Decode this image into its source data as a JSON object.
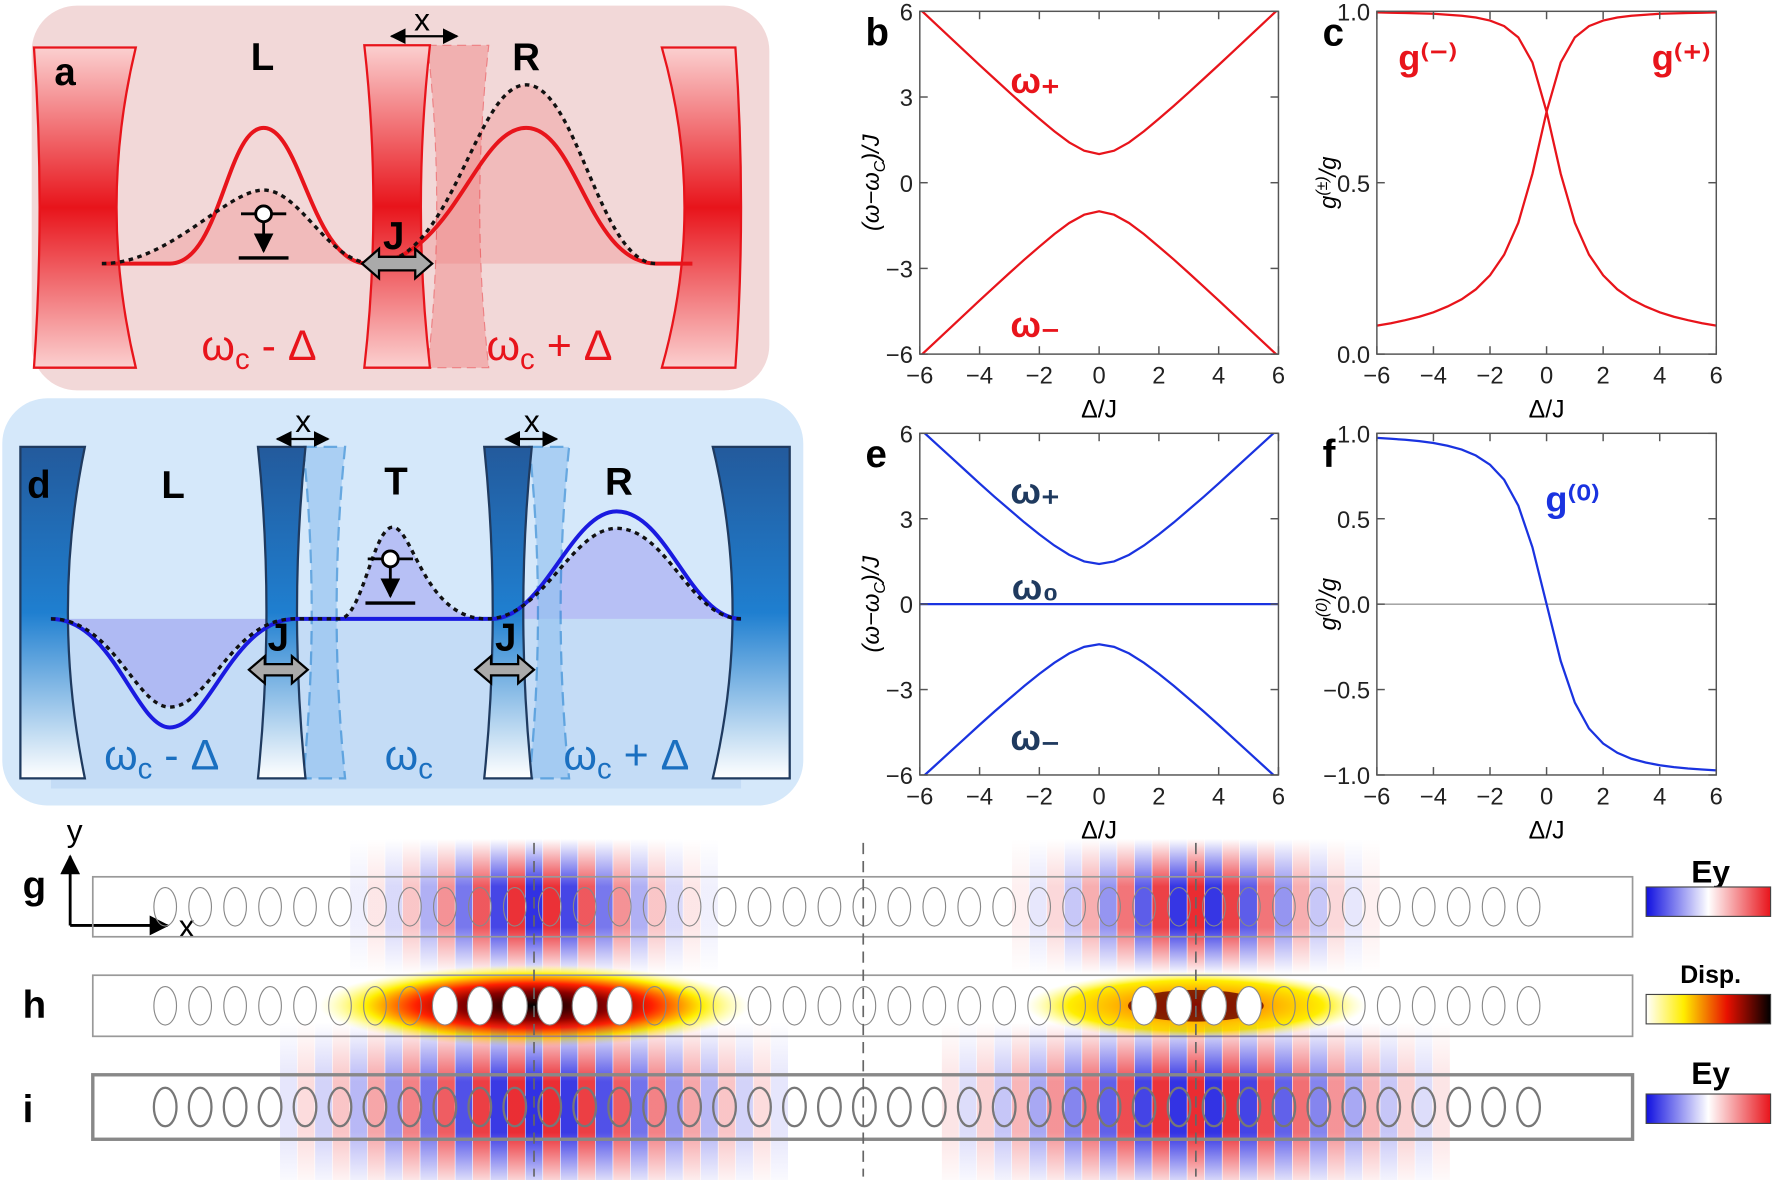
{
  "chart_data": [
    {
      "type": "line",
      "label": "b",
      "label_color": "#e8141b",
      "x": [
        -6,
        -5.5,
        -5,
        -4.5,
        -4,
        -3.5,
        -3,
        -2.5,
        -2,
        -1.5,
        -1,
        -0.5,
        0,
        0.5,
        1,
        1.5,
        2,
        2.5,
        3,
        3.5,
        4,
        4.5,
        5,
        5.5,
        6
      ],
      "series": [
        {
          "name": "ω₊",
          "color": "#e8141b",
          "values": [
            6.08,
            5.59,
            5.1,
            4.61,
            4.12,
            3.64,
            3.16,
            2.69,
            2.24,
            1.8,
            1.41,
            1.12,
            1,
            1.12,
            1.41,
            1.8,
            2.24,
            2.69,
            3.16,
            3.64,
            4.12,
            4.61,
            5.1,
            5.59,
            6.08
          ]
        },
        {
          "name": "ω₋",
          "color": "#e8141b",
          "values": [
            -6.08,
            -5.59,
            -5.1,
            -4.61,
            -4.12,
            -3.64,
            -3.16,
            -2.69,
            -2.24,
            -1.8,
            -1.41,
            -1.12,
            -1,
            -1.12,
            -1.41,
            -1.8,
            -2.24,
            -2.69,
            -3.16,
            -3.64,
            -4.12,
            -4.61,
            -5.1,
            -5.59,
            -6.08
          ]
        }
      ],
      "xlim": [
        -6,
        6
      ],
      "ylim": [
        -6,
        6
      ],
      "xticks": [
        {
          "value": -6,
          "label": "−6"
        },
        {
          "value": -4,
          "label": "−4"
        },
        {
          "value": -2,
          "label": "−2"
        },
        0,
        2,
        4,
        6
      ],
      "yticks": [
        {
          "value": -6,
          "label": "−6"
        },
        {
          "value": -3,
          "label": "−3"
        },
        0,
        3,
        6
      ],
      "xlabel": "Δ/J",
      "ylabel": [
        "(ω−ω",
        "C",
        ")/J"
      ],
      "zero_line": false
    },
    {
      "type": "line",
      "label": "c",
      "label_color": "#e8141b",
      "x": [
        -6,
        -5.5,
        -5,
        -4.5,
        -4,
        -3.5,
        -3,
        -2.5,
        -2,
        -1.5,
        -1,
        -0.5,
        0,
        0.5,
        1,
        1.5,
        2,
        2.5,
        3,
        3.5,
        4,
        4.5,
        5,
        5.5,
        6
      ],
      "series": [
        {
          "name": "g⁽⁻⁾",
          "color": "#e8141b",
          "values": [
            0.997,
            0.996,
            0.995,
            0.994,
            0.993,
            0.99,
            0.987,
            0.982,
            0.973,
            0.957,
            0.924,
            0.851,
            0.707,
            0.526,
            0.383,
            0.29,
            0.23,
            0.189,
            0.16,
            0.139,
            0.122,
            0.109,
            0.099,
            0.09,
            0.083
          ]
        },
        {
          "name": "g⁽⁺⁾",
          "color": "#e8141b",
          "values": [
            0.083,
            0.09,
            0.099,
            0.109,
            0.122,
            0.139,
            0.16,
            0.189,
            0.23,
            0.29,
            0.383,
            0.526,
            0.707,
            0.851,
            0.924,
            0.957,
            0.973,
            0.982,
            0.987,
            0.99,
            0.993,
            0.994,
            0.995,
            0.996,
            0.997
          ]
        }
      ],
      "xlim": [
        -6,
        6
      ],
      "ylim": [
        0,
        1
      ],
      "xticks": [
        {
          "value": -6,
          "label": "−6"
        },
        {
          "value": -4,
          "label": "−4"
        },
        {
          "value": -2,
          "label": "−2"
        },
        0,
        2,
        4,
        6
      ],
      "yticks": [
        {
          "value": 0,
          "label": "0.0"
        },
        0.5,
        {
          "value": 1,
          "label": "1.0"
        }
      ],
      "xlabel": "Δ/J",
      "ylabel": [
        "g",
        "(±)",
        "/g"
      ],
      "zero_line": false
    },
    {
      "type": "line",
      "label": "e",
      "label_color": "#1f3a5f",
      "x": [
        -6,
        -5.5,
        -5,
        -4.5,
        -4,
        -3.5,
        -3,
        -2.5,
        -2,
        -1.5,
        -1,
        -0.5,
        0,
        0.5,
        1,
        1.5,
        2,
        2.5,
        3,
        3.5,
        4,
        4.5,
        5,
        5.5,
        6
      ],
      "series": [
        {
          "name": "ω₊",
          "color": "#1a33e0",
          "values": [
            6.16,
            5.68,
            5.2,
            4.72,
            4.24,
            3.77,
            3.32,
            2.87,
            2.45,
            2.06,
            1.73,
            1.5,
            1.41,
            1.5,
            1.73,
            2.06,
            2.45,
            2.87,
            3.32,
            3.77,
            4.24,
            4.72,
            5.2,
            5.68,
            6.16
          ]
        },
        {
          "name": "ω₀",
          "color": "#1a33e0",
          "values": [
            0,
            0,
            0,
            0,
            0,
            0,
            0,
            0,
            0,
            0,
            0,
            0,
            0,
            0,
            0,
            0,
            0,
            0,
            0,
            0,
            0,
            0,
            0,
            0,
            0
          ]
        },
        {
          "name": "ω₋",
          "color": "#1a33e0",
          "values": [
            -6.16,
            -5.68,
            -5.2,
            -4.72,
            -4.24,
            -3.77,
            -3.32,
            -2.87,
            -2.45,
            -2.06,
            -1.73,
            -1.5,
            -1.41,
            -1.5,
            -1.73,
            -2.06,
            -2.45,
            -2.87,
            -3.32,
            -3.77,
            -4.24,
            -4.72,
            -5.2,
            -5.68,
            -6.16
          ]
        }
      ],
      "xlim": [
        -6,
        6
      ],
      "ylim": [
        -6,
        6
      ],
      "xticks": [
        {
          "value": -6,
          "label": "−6"
        },
        {
          "value": -4,
          "label": "−4"
        },
        {
          "value": -2,
          "label": "−2"
        },
        0,
        2,
        4,
        6
      ],
      "yticks": [
        {
          "value": -6,
          "label": "−6"
        },
        {
          "value": -3,
          "label": "−3"
        },
        0,
        3,
        6
      ],
      "xlabel": "Δ/J",
      "ylabel": [
        "(ω−ω",
        "C",
        ")/J"
      ],
      "zero_line": false
    },
    {
      "type": "line",
      "label": "f",
      "label_color": "#1a33e0",
      "x": [
        -6,
        -5.5,
        -5,
        -4.5,
        -4,
        -3.5,
        -3,
        -2.5,
        -2,
        -1.5,
        -1,
        -0.5,
        0,
        0.5,
        1,
        1.5,
        2,
        2.5,
        3,
        3.5,
        4,
        4.5,
        5,
        5.5,
        6
      ],
      "series": [
        {
          "name": "g⁽⁰⁾",
          "color": "#1a33e0",
          "values": [
            0.973,
            0.968,
            0.962,
            0.954,
            0.943,
            0.927,
            0.905,
            0.87,
            0.816,
            0.728,
            0.577,
            0.333,
            0,
            -0.333,
            -0.577,
            -0.728,
            -0.816,
            -0.87,
            -0.905,
            -0.927,
            -0.943,
            -0.954,
            -0.962,
            -0.968,
            -0.973
          ]
        }
      ],
      "xlim": [
        -6,
        6
      ],
      "ylim": [
        -1,
        1
      ],
      "xticks": [
        {
          "value": -6,
          "label": "−6"
        },
        {
          "value": -4,
          "label": "−4"
        },
        {
          "value": -2,
          "label": "−2"
        },
        0,
        2,
        4,
        6
      ],
      "yticks": [
        {
          "value": -1,
          "label": "−1.0"
        },
        {
          "value": -0.5,
          "label": "−0.5"
        },
        {
          "value": 0,
          "label": "0.0"
        },
        0.5,
        {
          "value": 1,
          "label": "1.0"
        }
      ],
      "xlabel": "Δ/J",
      "ylabel": [
        "g",
        "(0)",
        "/g"
      ],
      "zero_line": true
    }
  ],
  "panels": {
    "a": {
      "label": "a",
      "left": "L",
      "right": "R",
      "shift": "x",
      "coupling": "J",
      "left_freq": [
        "ω",
        "c",
        " - Δ"
      ],
      "right_freq": [
        "ω",
        "c",
        " + Δ"
      ]
    },
    "d": {
      "label": "d",
      "left": "L",
      "middle": "T",
      "right": "R",
      "shift": [
        "x",
        "x"
      ],
      "coupling": [
        "J",
        "J"
      ],
      "left_freq": [
        "ω",
        "c",
        " - Δ"
      ],
      "middle_freq": [
        "ω",
        "c"
      ],
      "right_freq": [
        "ω",
        "c",
        " + Δ"
      ]
    },
    "g": {
      "label": "g",
      "colorbar": "Ey"
    },
    "h": {
      "label": "h",
      "colorbar": "Disp."
    },
    "i": {
      "label": "i",
      "colorbar": "Ey"
    },
    "axes": {
      "y": "y",
      "x": "x"
    }
  }
}
